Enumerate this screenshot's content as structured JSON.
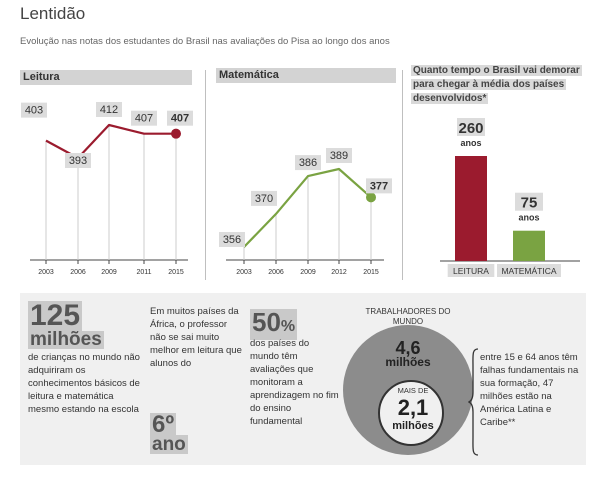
{
  "title": "Lentidão",
  "subtitle": "Evolução nas notas dos estudantes do Brasil nas avaliações do Pisa ao longo dos anos",
  "leitura": {
    "heading": "Leitura",
    "years": [
      "2003",
      "2006",
      "2009",
      "2011",
      "2015"
    ],
    "values": [
      403,
      393,
      412,
      407,
      407
    ],
    "color": "#9b1b2e"
  },
  "matematica": {
    "heading": "Matemática",
    "years": [
      "2003",
      "2006",
      "2009",
      "2012",
      "2015"
    ],
    "values": [
      356,
      370,
      386,
      389,
      377
    ],
    "color": "#7aa342"
  },
  "bars": {
    "heading": "Quanto tempo o Brasil vai demorar para chegar à média dos países desenvolvidos*",
    "items": [
      {
        "value": "260",
        "unit": "anos",
        "label": "LEITURA",
        "color": "#9b1b2e"
      },
      {
        "value": "75",
        "unit": "anos",
        "label": "MATEMÁTICA",
        "color": "#7aa342"
      }
    ]
  },
  "facts": {
    "f1_big": "125",
    "f1_unit": "milhões",
    "f1_text": "de crianças no mundo não adquiriram os conhecimentos básicos de leitura e matemática mesmo estando na escola",
    "f2_text": "Em muitos países da África, o professor não se sai muito melhor em leitura que alunos do",
    "f2_big": "6º",
    "f2_unit": "ano",
    "f3_big": "50",
    "f3_pct": "%",
    "f3_text": "dos países do mundo têm avaliações que monitoram a aprendizagem no fim do ensino fundamental",
    "f4_head": "TRABALHADORES DO MUNDO",
    "f4_outer_big": "4,6",
    "f4_outer_unit": "milhões",
    "f4_inner_small": "MAIS DE",
    "f4_inner_big": "2,1",
    "f4_inner_unit": "milhões",
    "f4_text": "entre 15 e 64 anos têm falhas fundamentais na sua formação, 47 milhões estão na América Latina e Caribe**"
  },
  "chart_data": [
    {
      "type": "line",
      "title": "Leitura",
      "x": [
        "2003",
        "2006",
        "2009",
        "2011",
        "2015"
      ],
      "values": [
        403,
        393,
        412,
        407,
        407
      ]
    },
    {
      "type": "line",
      "title": "Matemática",
      "x": [
        "2003",
        "2006",
        "2009",
        "2012",
        "2015"
      ],
      "values": [
        356,
        370,
        386,
        389,
        377
      ]
    },
    {
      "type": "bar",
      "title": "Quanto tempo o Brasil vai demorar para chegar à média dos países desenvolvidos*",
      "categories": [
        "LEITURA",
        "MATEMÁTICA"
      ],
      "values": [
        260,
        75
      ]
    }
  ]
}
